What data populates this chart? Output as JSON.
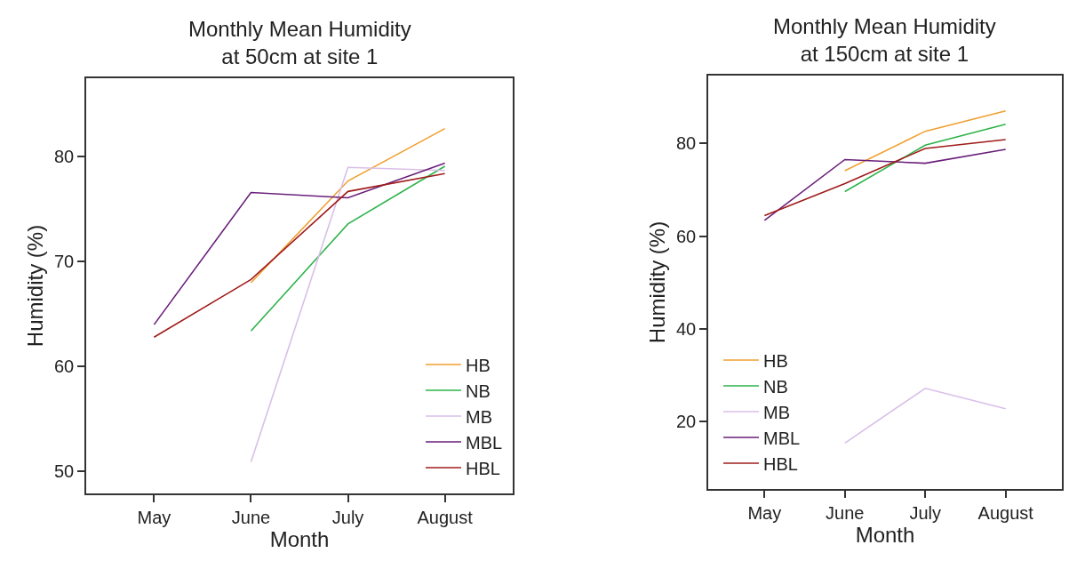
{
  "chart_data": [
    {
      "type": "line",
      "title": "Monthly Mean Humidity\nat 50cm at site 1",
      "xlabel": "Month",
      "ylabel": "Humidity (%)",
      "categories": [
        "May",
        "June",
        "July",
        "August"
      ],
      "ylim": [
        47.9,
        87.5
      ],
      "yticks": [
        50,
        60,
        70,
        80
      ],
      "legend": "bottom right",
      "marker": "none",
      "line_style": "solid",
      "series": [
        {
          "name": "HB",
          "color": "#f0a030",
          "values": [
            null,
            68.0,
            77.7,
            82.7
          ]
        },
        {
          "name": "NB",
          "color": "#2db34a",
          "values": [
            null,
            63.4,
            73.6,
            79.1
          ]
        },
        {
          "name": "MB",
          "color": "#d9bfe8",
          "values": [
            null,
            50.9,
            79.0,
            78.7
          ]
        },
        {
          "name": "MBL",
          "color": "#6a1f7a",
          "values": [
            64.0,
            76.6,
            76.1,
            79.4
          ]
        },
        {
          "name": "HBL",
          "color": "#a01c1c",
          "values": [
            62.8,
            68.3,
            76.7,
            78.4
          ]
        }
      ]
    },
    {
      "type": "line",
      "title": "Monthly Mean Humidity\nat 150cm at site 1",
      "xlabel": "Month",
      "ylabel": "Humidity (%)",
      "categories": [
        "May",
        "June",
        "July",
        "August"
      ],
      "ylim": [
        5.5,
        94.6
      ],
      "yticks": [
        20,
        40,
        60,
        80
      ],
      "legend": "bottom left",
      "marker": "none",
      "line_style": "solid",
      "series": [
        {
          "name": "HB",
          "color": "#f0a030",
          "values": [
            null,
            74.1,
            82.6,
            87.0
          ]
        },
        {
          "name": "NB",
          "color": "#2db34a",
          "values": [
            null,
            69.6,
            79.6,
            84.1
          ]
        },
        {
          "name": "MB",
          "color": "#d9bfe8",
          "values": [
            null,
            15.4,
            27.2,
            22.8
          ]
        },
        {
          "name": "MBL",
          "color": "#6a1f7a",
          "values": [
            63.4,
            76.5,
            75.7,
            78.7
          ]
        },
        {
          "name": "HBL",
          "color": "#a01c1c",
          "values": [
            64.4,
            71.3,
            78.9,
            80.8
          ]
        }
      ]
    }
  ]
}
